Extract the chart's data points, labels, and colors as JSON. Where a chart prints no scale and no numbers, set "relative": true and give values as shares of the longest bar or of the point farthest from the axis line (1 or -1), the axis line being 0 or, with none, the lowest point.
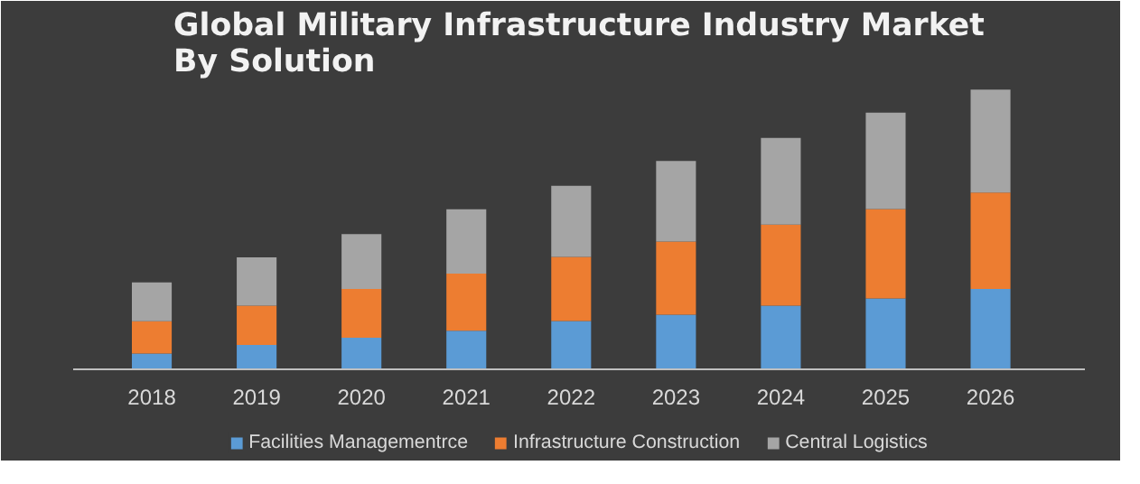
{
  "chart_data": {
    "type": "bar",
    "title": "Global Military Infrastructure Industry Market By Solution",
    "categories": [
      "2018",
      "2019",
      "2020",
      "2021",
      "2022",
      "2023",
      "2024",
      "2025",
      "2026"
    ],
    "stacked": true,
    "relative": true,
    "grid": false,
    "legend": "bottom",
    "series": [
      {
        "name": "Facilities Managementrce",
        "color": "#5b9bd5",
        "values": [
          0.055,
          0.085,
          0.111,
          0.136,
          0.171,
          0.194,
          0.226,
          0.252,
          0.286
        ]
      },
      {
        "name": "Infrastructure Construction",
        "color": "#ed7d31",
        "values": [
          0.115,
          0.141,
          0.175,
          0.205,
          0.23,
          0.262,
          0.29,
          0.32,
          0.345
        ]
      },
      {
        "name": "Central Logistics",
        "color": "#a5a5a5",
        "values": [
          0.139,
          0.173,
          0.196,
          0.23,
          0.254,
          0.288,
          0.311,
          0.345,
          0.369
        ]
      }
    ]
  }
}
